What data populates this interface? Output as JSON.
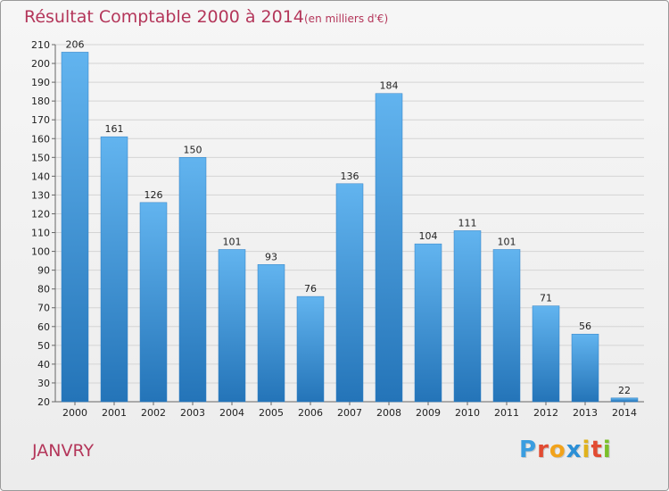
{
  "header": {
    "title": "Résultat Comptable 2000 à 2014",
    "subtitle": "(en milliers d'€)"
  },
  "location": "JANVRY",
  "logo": {
    "letters": [
      "P",
      "r",
      "o",
      "x",
      "i",
      "t",
      "i"
    ],
    "colors": [
      "#3a9de0",
      "#e24b32",
      "#f2a31b",
      "#2b8fd6",
      "#e0b21c",
      "#e24b32",
      "#7bbf2a"
    ]
  },
  "chart_data": {
    "type": "bar",
    "title": "Résultat Comptable 2000 à 2014",
    "subtitle": "(en milliers d'€)",
    "categories": [
      "2000",
      "2001",
      "2002",
      "2003",
      "2004",
      "2005",
      "2006",
      "2007",
      "2008",
      "2009",
      "2010",
      "2011",
      "2012",
      "2013",
      "2014"
    ],
    "values": [
      206,
      161,
      126,
      150,
      101,
      93,
      76,
      136,
      184,
      104,
      111,
      101,
      71,
      56,
      22
    ],
    "ylim": [
      20,
      210
    ],
    "yticks": [
      20,
      30,
      40,
      50,
      60,
      70,
      80,
      90,
      100,
      110,
      120,
      130,
      140,
      150,
      160,
      170,
      180,
      190,
      200,
      210
    ],
    "grid": true,
    "bar_color": "#3f97dc",
    "xlabel": "",
    "ylabel": ""
  }
}
